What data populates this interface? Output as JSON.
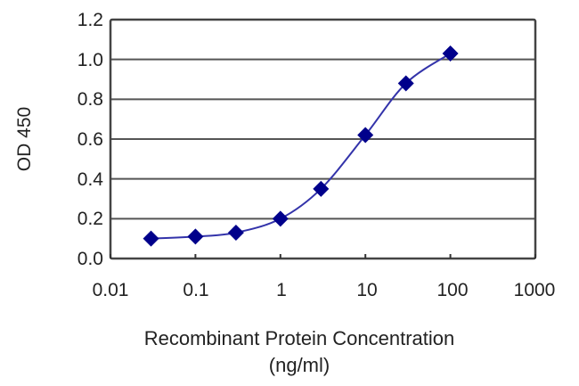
{
  "chart_data": {
    "type": "line",
    "title": "",
    "xlabel": "Recombinant Protein Concentration",
    "xlabel_unit": "(ng/ml)",
    "ylabel": "OD 450",
    "xscale": "log",
    "xlim": [
      0.01,
      1000
    ],
    "ylim": [
      0.0,
      1.2
    ],
    "x_ticks": [
      "0.01",
      "0.1",
      "1",
      "10",
      "100",
      "1000"
    ],
    "y_ticks": [
      "0.0",
      "0.2",
      "0.4",
      "0.6",
      "0.8",
      "1.0",
      "1.2"
    ],
    "grid": "horizontal",
    "legend": null,
    "series": [
      {
        "name": "OD 450",
        "color": "#00008B",
        "marker": "diamond",
        "x": [
          0.03,
          0.1,
          0.3,
          1,
          3,
          10,
          30,
          100
        ],
        "y": [
          0.1,
          0.11,
          0.13,
          0.2,
          0.35,
          0.62,
          0.88,
          1.03
        ]
      }
    ]
  },
  "style": {
    "line_color": "#3333AA",
    "marker_color": "#00008B",
    "grid_color": "#555555"
  }
}
